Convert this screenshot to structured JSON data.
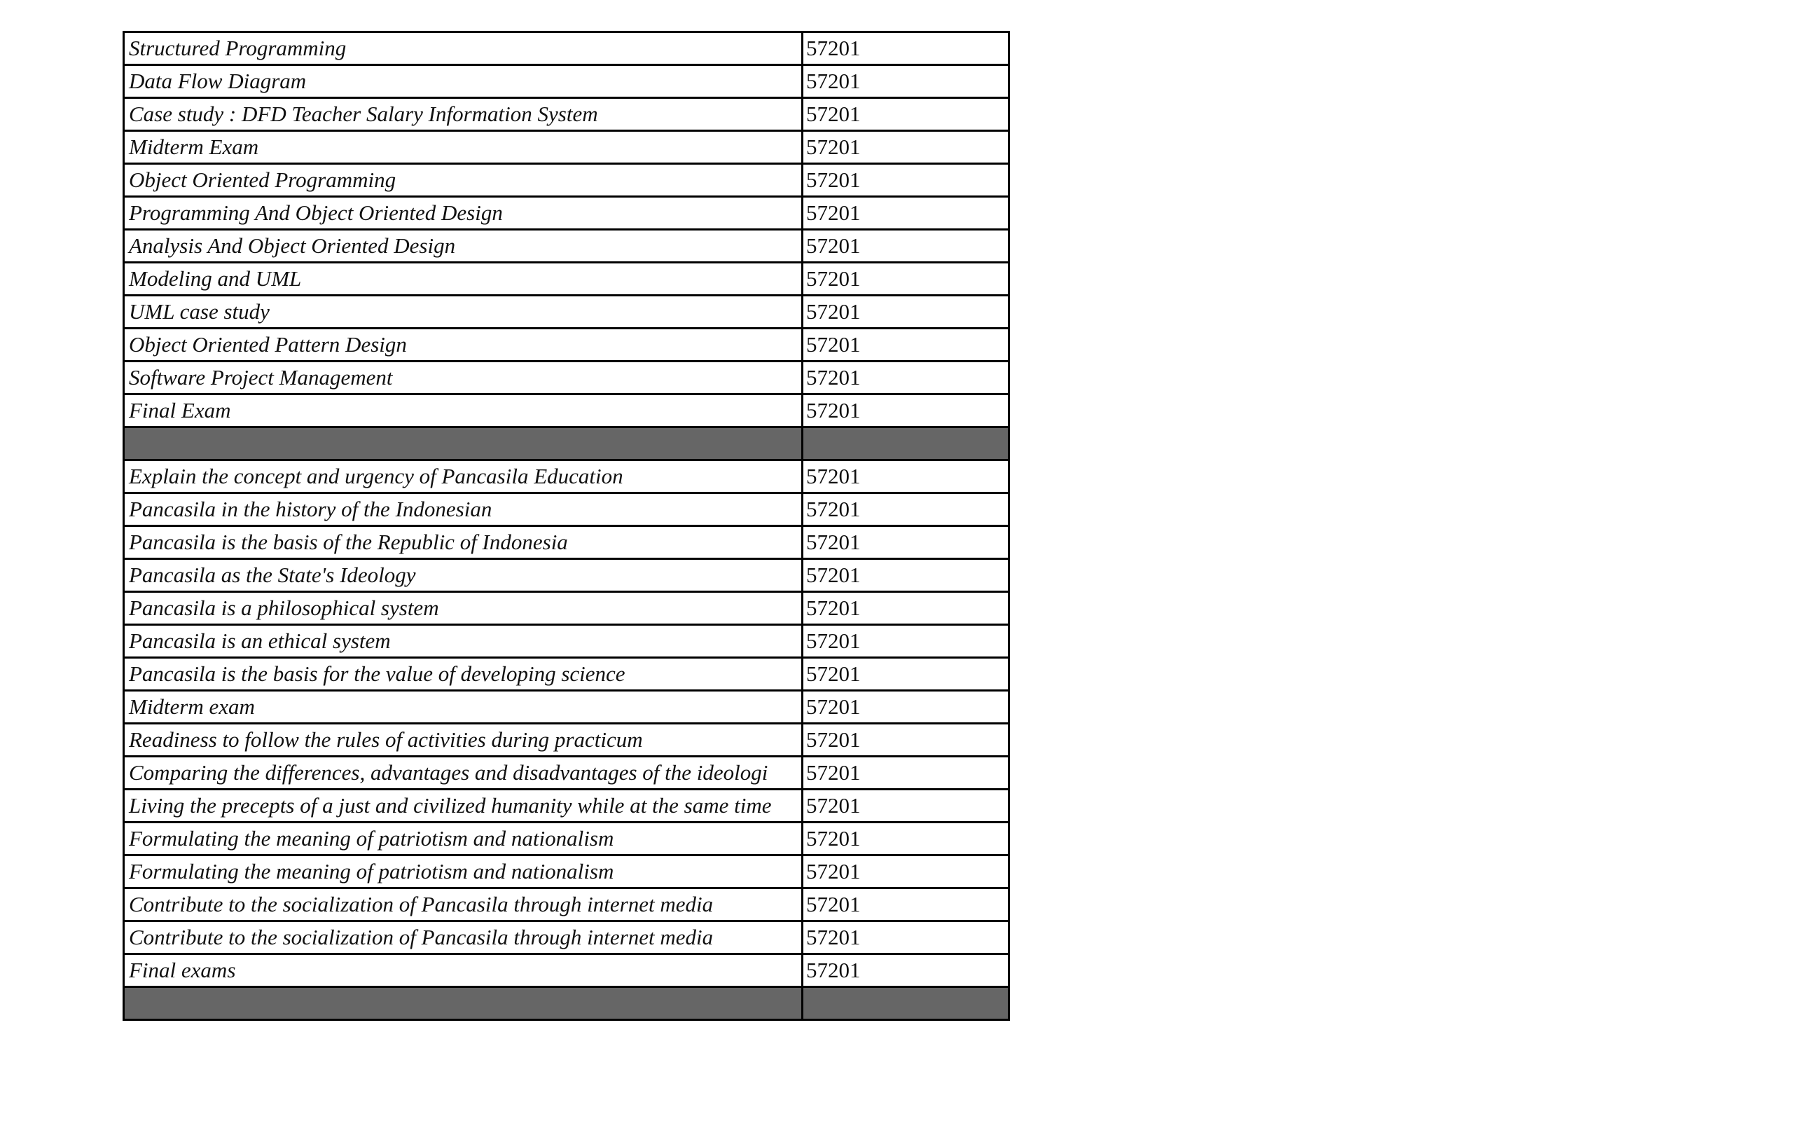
{
  "table": {
    "separator_color": "#666666",
    "rows": [
      {
        "topic": "Structured Programming",
        "code": "57201"
      },
      {
        "topic": "Data Flow Diagram",
        "code": "57201"
      },
      {
        "topic": "Case study : DFD Teacher Salary Information System",
        "code": "57201"
      },
      {
        "topic": "Midterm Exam",
        "code": "57201"
      },
      {
        "topic": "Object Oriented Programming",
        "code": "57201"
      },
      {
        "topic": "Programming And Object Oriented Design",
        "code": "57201"
      },
      {
        "topic": "Analysis And Object Oriented Design",
        "code": "57201"
      },
      {
        "topic": "Modeling and UML",
        "code": "57201"
      },
      {
        "topic": "UML case study",
        "code": "57201"
      },
      {
        "topic": "Object Oriented Pattern Design",
        "code": "57201"
      },
      {
        "topic": "Software Project Management",
        "code": "57201"
      },
      {
        "topic": "Final Exam",
        "code": "57201"
      },
      {
        "separator": true
      },
      {
        "topic": "Explain the concept and urgency of Pancasila Education",
        "code": "57201"
      },
      {
        "topic": "Pancasila in the history of the Indonesian",
        "code": "57201"
      },
      {
        "topic": "Pancasila is the basis of the Republic of Indonesia",
        "code": "57201"
      },
      {
        "topic": "Pancasila as the State's Ideology",
        "code": "57201"
      },
      {
        "topic": "Pancasila is a philosophical system",
        "code": "57201"
      },
      {
        "topic": "Pancasila is an ethical system",
        "code": "57201"
      },
      {
        "topic": "Pancasila is the basis for the value of developing science",
        "code": "57201"
      },
      {
        "topic": "Midterm exam",
        "code": "57201"
      },
      {
        "topic": "Readiness to follow the rules of activities during practicum",
        "code": "57201"
      },
      {
        "topic": "Comparing the differences, advantages and disadvantages of the ideologi",
        "code": "57201"
      },
      {
        "topic": "Living the precepts of a just and civilized humanity while at the same time",
        "code": "57201"
      },
      {
        "topic": "Formulating the meaning of patriotism and nationalism",
        "code": "57201"
      },
      {
        "topic": "Formulating the meaning of patriotism and nationalism",
        "code": "57201"
      },
      {
        "topic": "Contribute to the socialization of Pancasila through internet media",
        "code": "57201"
      },
      {
        "topic": "Contribute to the socialization of Pancasila through internet media",
        "code": "57201"
      },
      {
        "topic": "Final exams",
        "code": "57201"
      },
      {
        "separator": true
      }
    ]
  }
}
